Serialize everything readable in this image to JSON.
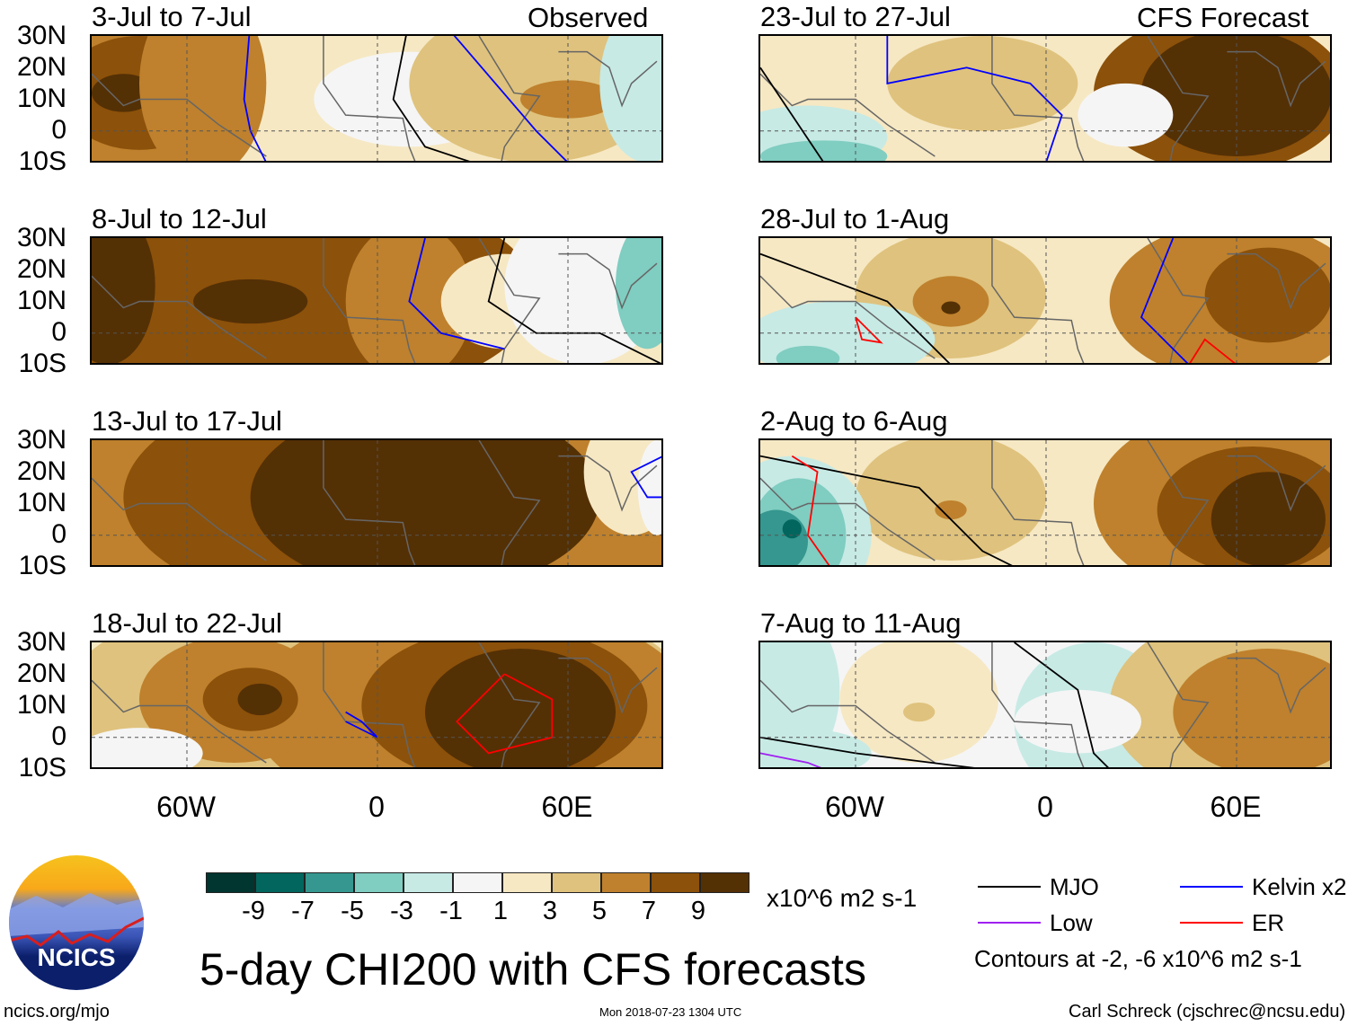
{
  "header": {
    "left": "Observed",
    "right": "CFS Forecast"
  },
  "panels": [
    {
      "title": "3-Jul to 7-Jul",
      "column": "left"
    },
    {
      "title": "8-Jul to 12-Jul",
      "column": "left"
    },
    {
      "title": "13-Jul to 17-Jul",
      "column": "left"
    },
    {
      "title": "18-Jul to 22-Jul",
      "column": "left"
    },
    {
      "title": "23-Jul to 27-Jul",
      "column": "right"
    },
    {
      "title": "28-Jul to 1-Aug",
      "column": "right"
    },
    {
      "title": "2-Aug to 6-Aug",
      "column": "right"
    },
    {
      "title": "7-Aug to 11-Aug",
      "column": "right"
    }
  ],
  "lat_labels": [
    "30N",
    "20N",
    "10N",
    "0",
    "10S"
  ],
  "lon_labels": [
    "60W",
    "0",
    "60E"
  ],
  "colorbar": {
    "colors": [
      "#01352f",
      "#02665e",
      "#35978f",
      "#80cdc1",
      "#c7eae5",
      "#f5f5f5",
      "#f6e8c3",
      "#dfc27d",
      "#bf812d",
      "#8c510a",
      "#543005"
    ],
    "labels": [
      "-9",
      "-7",
      "-5",
      "-3",
      "-1",
      "1",
      "3",
      "5",
      "7",
      "9"
    ],
    "units": "x10^6 m2 s-1"
  },
  "title": "5-day CHI200 with CFS forecasts",
  "legend": {
    "items": [
      {
        "label": "MJO",
        "color": "#000000"
      },
      {
        "label": "Kelvin x2",
        "color": "#0000ff"
      },
      {
        "label": "Low",
        "color": "#a020f0"
      },
      {
        "label": "ER",
        "color": "#ff0000"
      }
    ],
    "note": "Contours at -2, -6 x10^6 m2 s-1"
  },
  "logo": {
    "text": "NCICS"
  },
  "footer": {
    "url": "ncics.org/mjo",
    "timestamp": "Mon 2018-07-23 1304 UTC",
    "credit": "Carl Schreck (cjschrec@ncsu.edu)"
  }
}
